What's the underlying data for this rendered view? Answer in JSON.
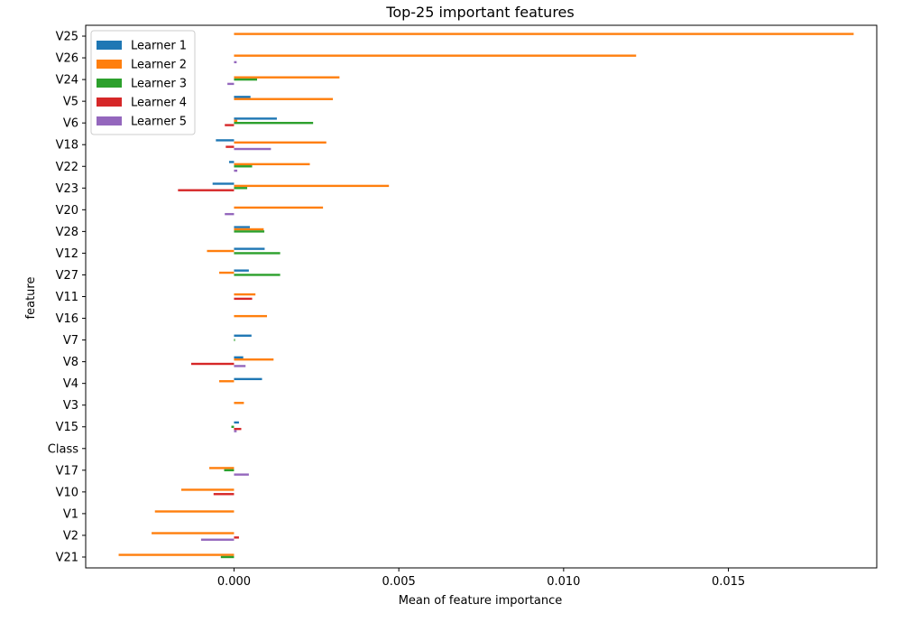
{
  "chart_data": {
    "type": "bar",
    "orientation": "horizontal",
    "title": "Top-25 important features",
    "xlabel": "Mean of feature importance",
    "ylabel": "feature",
    "xlim": [
      -0.0045,
      0.0195
    ],
    "xticks": [
      {
        "value": 0.0,
        "label": "0.000"
      },
      {
        "value": 0.005,
        "label": "0.005"
      },
      {
        "value": 0.01,
        "label": "0.010"
      },
      {
        "value": 0.015,
        "label": "0.015"
      }
    ],
    "legend_position": "top-left",
    "grid": false,
    "categories": [
      "V25",
      "V26",
      "V24",
      "V5",
      "V6",
      "V18",
      "V22",
      "V23",
      "V20",
      "V28",
      "V12",
      "V27",
      "V11",
      "V16",
      "V7",
      "V8",
      "V4",
      "V3",
      "V15",
      "Class",
      "V17",
      "V10",
      "V1",
      "V2",
      "V21"
    ],
    "series": [
      {
        "name": "Learner 1",
        "color": "#1f77b4",
        "values": [
          0,
          0,
          0,
          0.0005,
          0.0013,
          -0.00055,
          -0.00015,
          -0.00065,
          0,
          0.00048,
          0.00093,
          0.00045,
          0,
          0,
          0.00053,
          0.00028,
          0.00085,
          0,
          0.00015,
          0,
          0,
          0,
          0,
          0,
          0
        ]
      },
      {
        "name": "Learner 2",
        "color": "#ff7f0e",
        "values": [
          0.0188,
          0.0122,
          0.0032,
          0.003,
          0.0001,
          0.0028,
          0.0023,
          0.0047,
          0.0027,
          0.0009,
          -0.00082,
          -0.00045,
          0.00065,
          0.001,
          0,
          0.0012,
          -0.00045,
          0.0003,
          0,
          0,
          -0.00075,
          -0.0016,
          -0.0024,
          -0.0025,
          -0.0035
        ]
      },
      {
        "name": "Learner 3",
        "color": "#2ca02c",
        "values": [
          0,
          0,
          0.0007,
          0,
          0.0024,
          0,
          0.00055,
          0.0004,
          0,
          0.00092,
          0.0014,
          0.0014,
          0,
          0,
          3e-05,
          0,
          0,
          0,
          -8e-05,
          0,
          -0.0003,
          0,
          0,
          0,
          -0.0004
        ]
      },
      {
        "name": "Learner 4",
        "color": "#d62728",
        "values": [
          0,
          0,
          0,
          0,
          -0.00028,
          -0.00025,
          0,
          -0.0017,
          0,
          0,
          0,
          0,
          0.00055,
          0,
          0,
          -0.0013,
          0,
          0,
          0.00022,
          0,
          0,
          -0.00062,
          0,
          0.00015,
          0
        ]
      },
      {
        "name": "Learner 5",
        "color": "#9467bd",
        "values": [
          0,
          8e-05,
          -0.0002,
          0,
          0,
          0.00112,
          0.0001,
          0,
          -0.00028,
          0,
          0,
          0,
          0,
          0,
          0,
          0.00035,
          0,
          0,
          8e-05,
          0,
          0.00045,
          0,
          0,
          -0.001,
          0
        ]
      }
    ]
  }
}
